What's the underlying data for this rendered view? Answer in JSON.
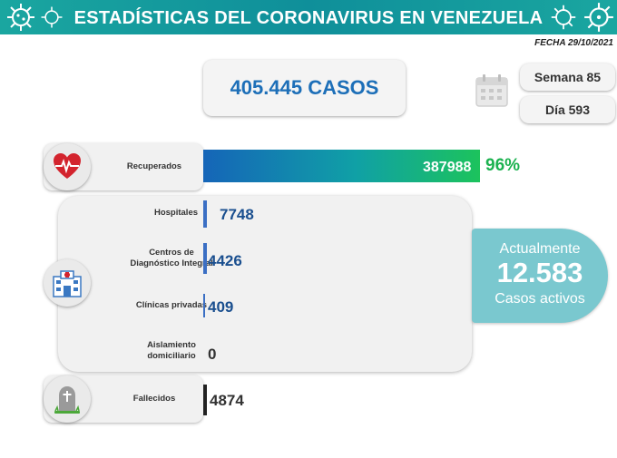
{
  "header": {
    "title": "ESTADÍSTICAS DEL CORONAVIRUS EN VENEZUELA",
    "date": "FECHA 29/10/2021"
  },
  "summary": {
    "total_cases": "405.445 CASOS",
    "week": "Semana 85",
    "day": "Día 593"
  },
  "recovered": {
    "label": "Recuperados",
    "value": "387988",
    "percent": "96%",
    "fraction": 0.96
  },
  "hospitalization": [
    {
      "label": "Hospitales",
      "value": "7748"
    },
    {
      "label": "Centros de\nDiagnóstico Integral",
      "value": "4426"
    },
    {
      "label": "Clínicas privadas",
      "value": "409"
    },
    {
      "label": "Aislamiento\ndomiciliario",
      "value": "0"
    }
  ],
  "active": {
    "top": "Actualmente",
    "number": "12.583",
    "bottom": "Casos activos"
  },
  "deceased": {
    "label": "Fallecidos",
    "value": "4874"
  },
  "icons": {
    "recovered": "heart-pulse-icon",
    "hospital": "hospital-icon",
    "deceased": "tombstone-icon",
    "calendar": "calendar-icon",
    "decor": "coronavirus-icon"
  },
  "colors": {
    "header": "#1aa6a0",
    "value_blue": "#1a4f8f",
    "percent_green": "#1bb24f",
    "active_bubble": "#7ac8cf"
  }
}
